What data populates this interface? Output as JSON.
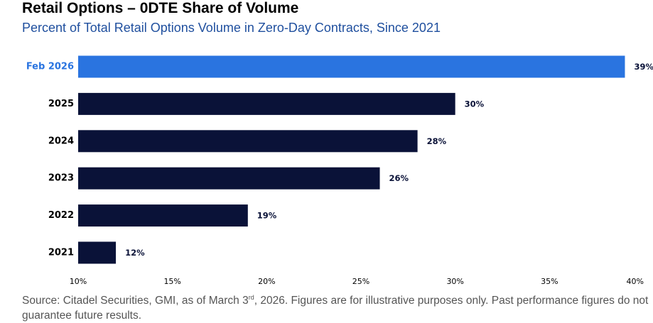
{
  "header": {
    "title": "Retail Options – 0DTE Share of Volume",
    "subtitle": "Percent of Total Retail Options Volume in Zero-Day Contracts, Since 2021"
  },
  "footer": {
    "source_before": "Source: Citadel Securities, GMI, as of March 3",
    "source_sup": "rd",
    "source_after": ", 2026. Figures are for illustrative purposes only. Past performance figures do not guarantee future results."
  },
  "colors": {
    "highlight": "#2a74e0",
    "bar": "#0a1238",
    "highlight_label": "#2a74e0",
    "label": "#0a1238"
  },
  "chart_data": {
    "type": "bar",
    "orientation": "horizontal",
    "categories": [
      "Feb 2026",
      "2025",
      "2024",
      "2023",
      "2022",
      "2021"
    ],
    "values": [
      39,
      30,
      28,
      26,
      19,
      12
    ],
    "value_labels": [
      "39%",
      "30%",
      "28%",
      "26%",
      "19%",
      "12%"
    ],
    "highlighted_category": "Feb 2026",
    "xlim": [
      10,
      40
    ],
    "xticks": [
      10,
      15,
      20,
      25,
      30,
      35,
      40
    ],
    "xtick_labels": [
      "10%",
      "15%",
      "20%",
      "25%",
      "30%",
      "35%",
      "40%"
    ],
    "grid": false,
    "legend": false
  }
}
